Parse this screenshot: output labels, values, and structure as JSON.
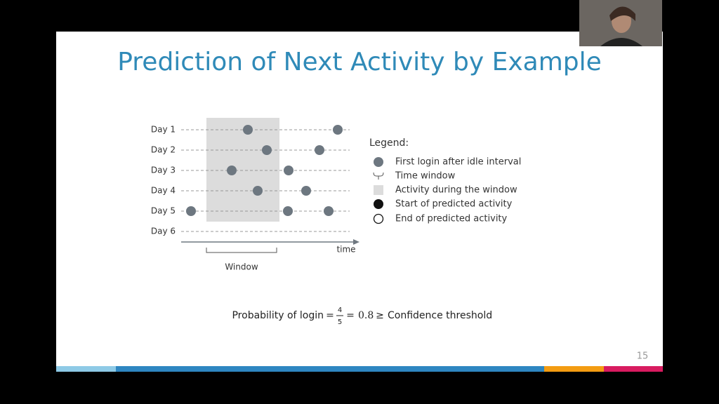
{
  "slide": {
    "title": "Prediction of Next Activity by Example",
    "days": [
      "Day 1",
      "Day 2",
      "Day 3",
      "Day 4",
      "Day 5",
      "Day 6"
    ],
    "axis_label": "time",
    "window_label": "Window",
    "legend": {
      "title": "Legend:",
      "items": [
        "First login after idle interval",
        "Time window",
        "Activity during the window",
        "Start of predicted activity",
        "End of predicted activity"
      ]
    },
    "formula": {
      "lhs": "Probability of login",
      "eq1": "=",
      "numerator": "4",
      "denominator": "5",
      "eq2": "=",
      "result": "0.8",
      "geq": "≥",
      "rhs": "Confidence threshold"
    },
    "page_number": "15"
  }
}
